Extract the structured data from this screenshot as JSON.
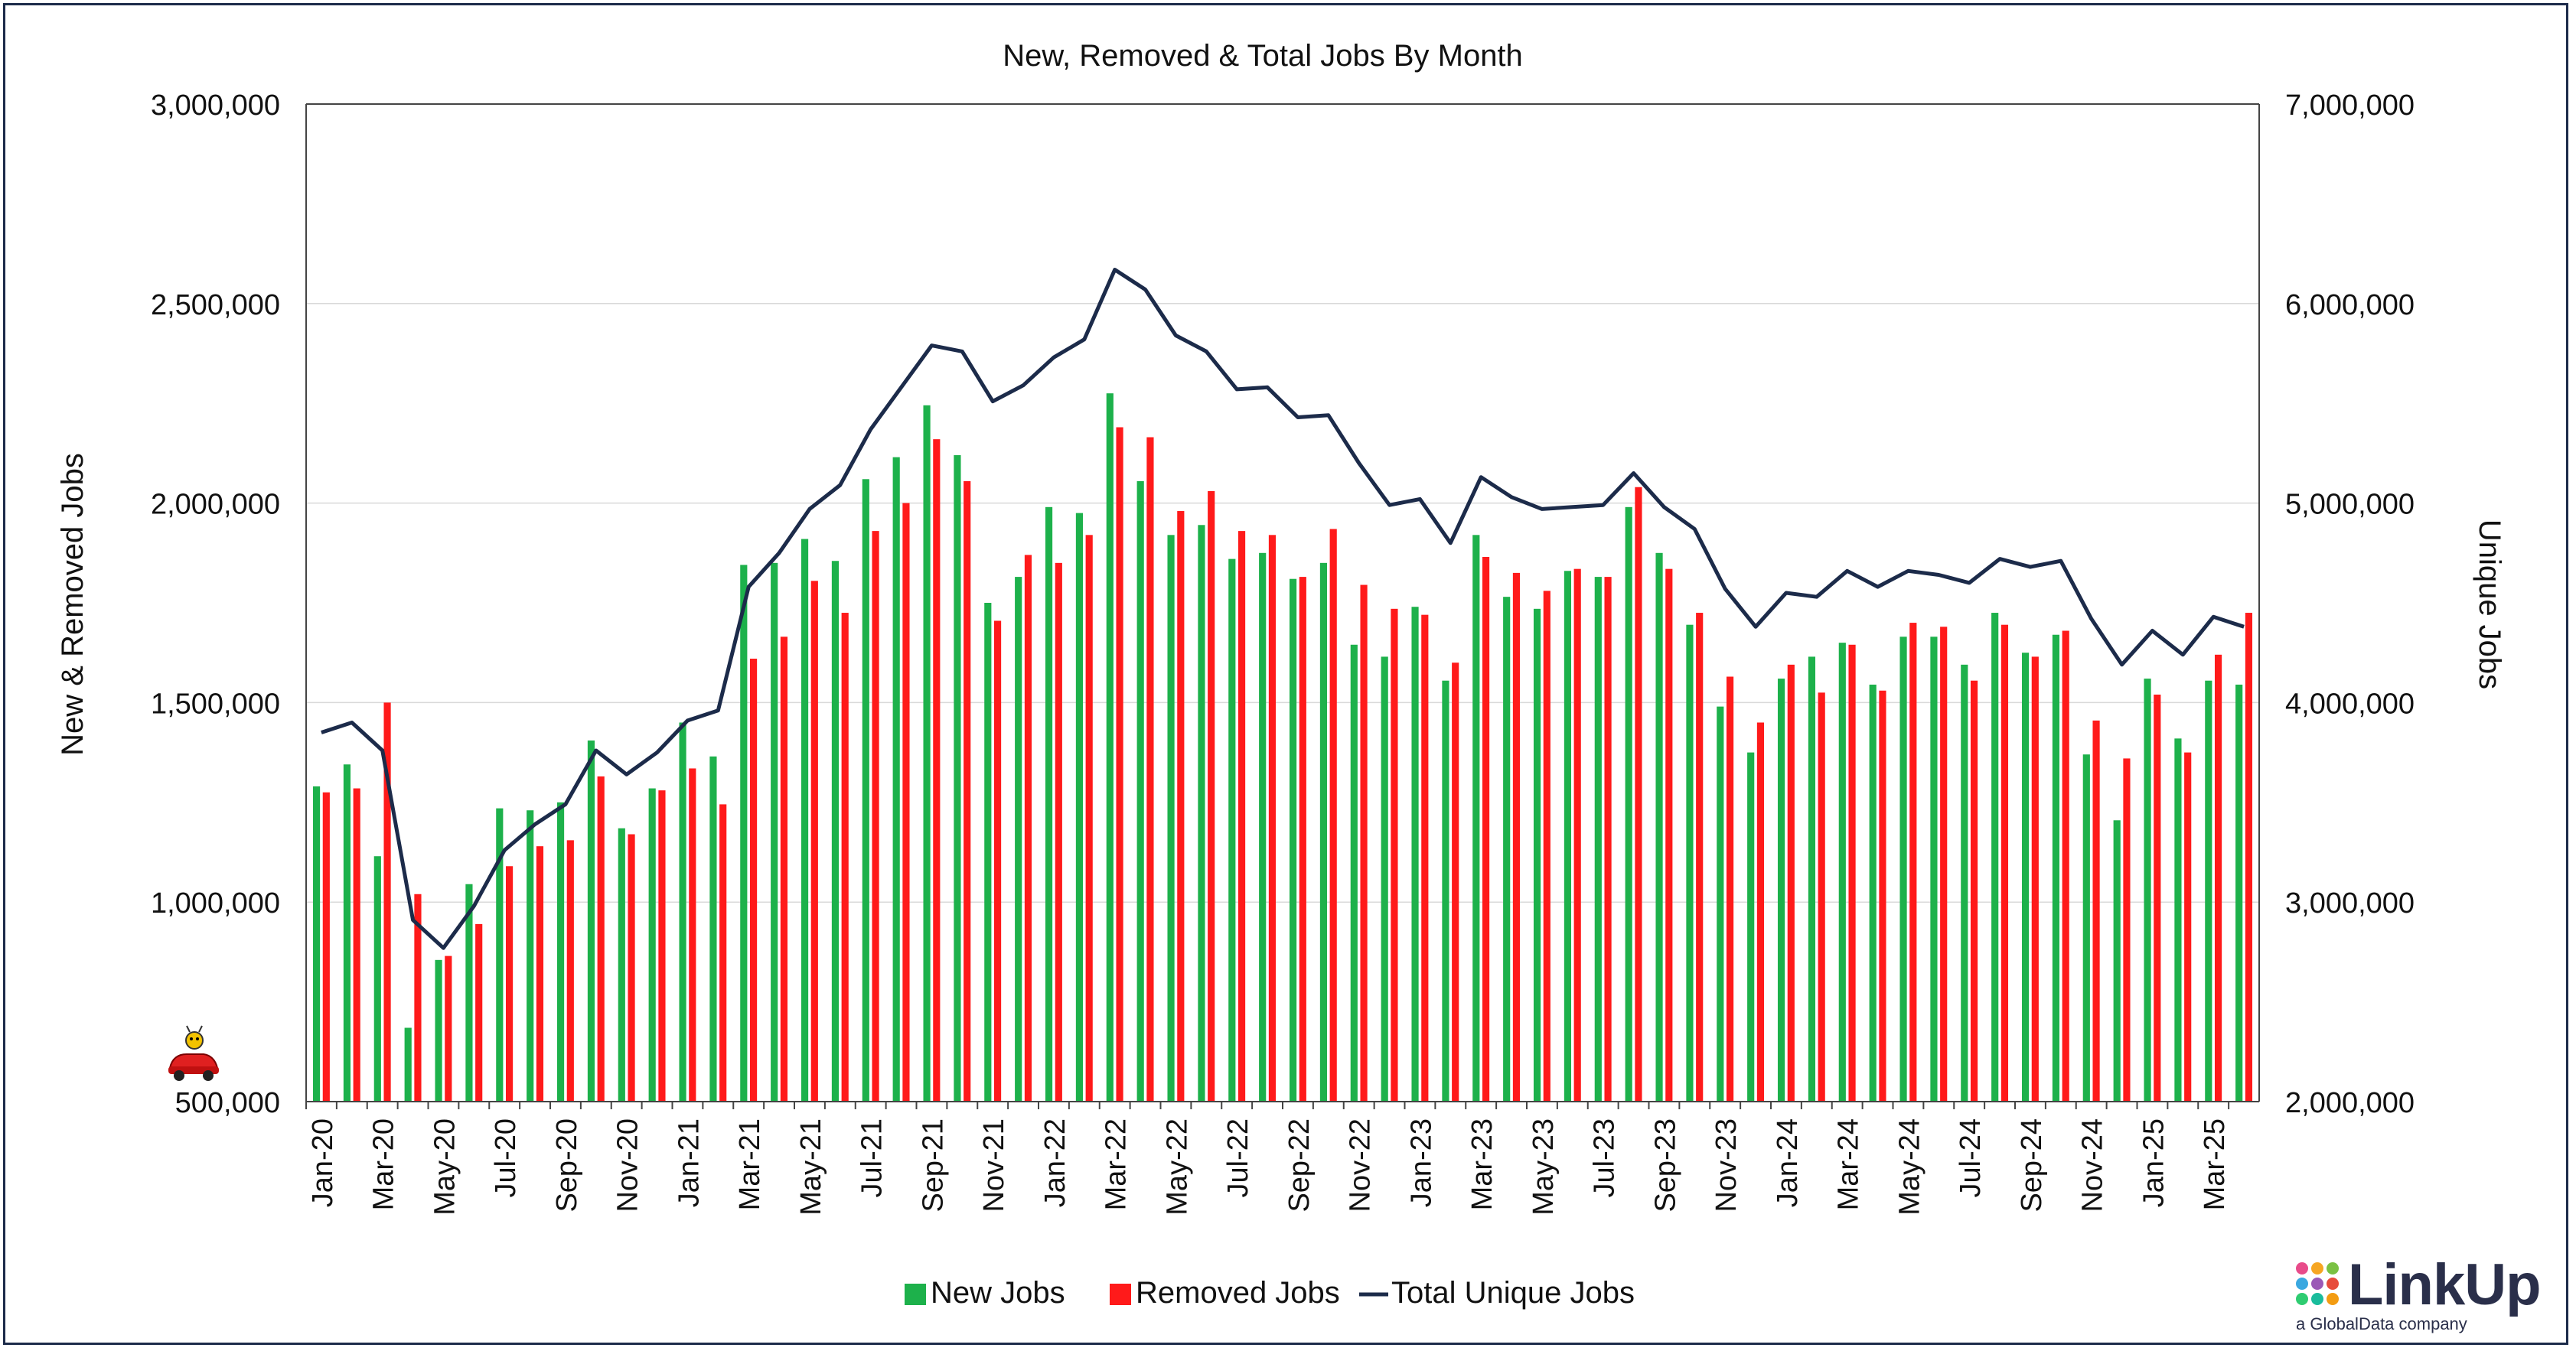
{
  "chart_data": {
    "type": "bar+line",
    "title": "New, Removed & Total Jobs By Month",
    "ylabel_left": "New & Removed Jobs",
    "ylabel_right": "Unique Jobs",
    "ylim_left": [
      500000,
      3000000
    ],
    "ylim_right": [
      2000000,
      7000000
    ],
    "yticks_left": [
      "500,000",
      "1,000,000",
      "1,500,000",
      "2,000,000",
      "2,500,000",
      "3,000,000"
    ],
    "yticks_right": [
      "2,000,000",
      "3,000,000",
      "4,000,000",
      "5,000,000",
      "6,000,000",
      "7,000,000"
    ],
    "grid": "horizontal",
    "legend_position": "bottom",
    "categories": [
      "Jan-20",
      "Feb-20",
      "Mar-20",
      "Apr-20",
      "May-20",
      "Jun-20",
      "Jul-20",
      "Aug-20",
      "Sep-20",
      "Oct-20",
      "Nov-20",
      "Dec-20",
      "Jan-21",
      "Feb-21",
      "Mar-21",
      "Apr-21",
      "May-21",
      "Jun-21",
      "Jul-21",
      "Aug-21",
      "Sep-21",
      "Oct-21",
      "Nov-21",
      "Dec-21",
      "Jan-22",
      "Feb-22",
      "Mar-22",
      "Apr-22",
      "May-22",
      "Jun-22",
      "Jul-22",
      "Aug-22",
      "Sep-22",
      "Oct-22",
      "Nov-22",
      "Dec-22",
      "Jan-23",
      "Feb-23",
      "Mar-23",
      "Apr-23",
      "May-23",
      "Jun-23",
      "Jul-23",
      "Aug-23",
      "Sep-23",
      "Oct-23",
      "Nov-23",
      "Dec-23",
      "Jan-24",
      "Feb-24",
      "Mar-24",
      "Apr-24",
      "May-24",
      "Jun-24",
      "Jul-24",
      "Aug-24",
      "Sep-24",
      "Oct-24",
      "Nov-24",
      "Dec-24",
      "Jan-25",
      "Feb-25",
      "Mar-25",
      "Apr-25"
    ],
    "xtick_labels": [
      "Jan-20",
      "Mar-20",
      "May-20",
      "Jul-20",
      "Sep-20",
      "Nov-20",
      "Jan-21",
      "Mar-21",
      "May-21",
      "Jul-21",
      "Sep-21",
      "Nov-21",
      "Jan-22",
      "Mar-22",
      "May-22",
      "Jul-22",
      "Sep-22",
      "Nov-22",
      "Jan-23",
      "Mar-23",
      "May-23",
      "Jul-23",
      "Sep-23",
      "Nov-23",
      "Jan-24",
      "Mar-24",
      "May-24",
      "Jul-24",
      "Sep-24",
      "Nov-24",
      "Jan-25",
      "Mar-25"
    ],
    "series": [
      {
        "name": "New Jobs",
        "axis": "left",
        "kind": "bar",
        "color": "#1db14b",
        "values": [
          1290000,
          1345000,
          1115000,
          685000,
          855000,
          1045000,
          1235000,
          1230000,
          1250000,
          1405000,
          1185000,
          1285000,
          1450000,
          1365000,
          1845000,
          1850000,
          1910000,
          1855000,
          2060000,
          2115000,
          2245000,
          2120000,
          1750000,
          1815000,
          1990000,
          1975000,
          2275000,
          2055000,
          1920000,
          1945000,
          1860000,
          1875000,
          1810000,
          1850000,
          1645000,
          1615000,
          1740000,
          1555000,
          1920000,
          1765000,
          1735000,
          1830000,
          1815000,
          1990000,
          1875000,
          1695000,
          1490000,
          1375000,
          1560000,
          1615000,
          1650000,
          1545000,
          1665000,
          1665000,
          1595000,
          1725000,
          1625000,
          1670000,
          1370000,
          1205000,
          1560000,
          1410000,
          1555000,
          1545000
        ]
      },
      {
        "name": "Removed Jobs",
        "axis": "left",
        "kind": "bar",
        "color": "#ff1a1a",
        "values": [
          1275000,
          1285000,
          1500000,
          1020000,
          865000,
          945000,
          1090000,
          1140000,
          1155000,
          1315000,
          1170000,
          1280000,
          1335000,
          1245000,
          1610000,
          1665000,
          1805000,
          1725000,
          1930000,
          2000000,
          2160000,
          2055000,
          1705000,
          1870000,
          1850000,
          1920000,
          2190000,
          2165000,
          1980000,
          2030000,
          1930000,
          1920000,
          1815000,
          1935000,
          1795000,
          1735000,
          1720000,
          1600000,
          1865000,
          1825000,
          1780000,
          1835000,
          1815000,
          2040000,
          1835000,
          1725000,
          1565000,
          1450000,
          1595000,
          1525000,
          1645000,
          1530000,
          1700000,
          1690000,
          1555000,
          1695000,
          1615000,
          1680000,
          1455000,
          1360000,
          1520000,
          1375000,
          1620000,
          1725000
        ]
      },
      {
        "name": "Total Unique Jobs",
        "axis": "right",
        "kind": "line",
        "color": "#1c2b4a",
        "values": [
          3850000,
          3900000,
          3760000,
          2910000,
          2770000,
          2980000,
          3260000,
          3390000,
          3490000,
          3760000,
          3640000,
          3750000,
          3910000,
          3960000,
          4580000,
          4750000,
          4970000,
          5090000,
          5370000,
          5580000,
          5790000,
          5760000,
          5510000,
          5590000,
          5730000,
          5820000,
          6170000,
          6070000,
          5840000,
          5760000,
          5570000,
          5580000,
          5430000,
          5440000,
          5200000,
          4990000,
          5020000,
          4800000,
          5130000,
          5030000,
          4970000,
          4980000,
          4990000,
          5150000,
          4980000,
          4870000,
          4570000,
          4380000,
          4550000,
          4530000,
          4660000,
          4580000,
          4660000,
          4640000,
          4600000,
          4720000,
          4680000,
          4710000,
          4420000,
          4190000,
          4360000,
          4240000,
          4430000,
          4380000
        ]
      }
    ]
  },
  "logo": {
    "word": "LinkUp",
    "subtitle": "a GlobalData company",
    "dot_colors": [
      "#e84b8a",
      "#f6a623",
      "#7ac143",
      "#3aa8e0",
      "#9b59b6",
      "#e74c3c",
      "#2ecc71",
      "#1abc9c",
      "#f39c12"
    ]
  }
}
